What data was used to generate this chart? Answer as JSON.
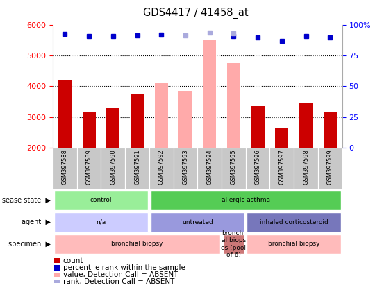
{
  "title": "GDS4417 / 41458_at",
  "samples": [
    "GSM397588",
    "GSM397589",
    "GSM397590",
    "GSM397591",
    "GSM397592",
    "GSM397593",
    "GSM397594",
    "GSM397595",
    "GSM397596",
    "GSM397597",
    "GSM397598",
    "GSM397599"
  ],
  "count_values": [
    4180,
    3160,
    3310,
    3750,
    null,
    null,
    null,
    null,
    3360,
    2660,
    3440,
    3160
  ],
  "count_absent": [
    null,
    null,
    null,
    null,
    4100,
    3840,
    5500,
    4760,
    null,
    null,
    null,
    null
  ],
  "percentile_present": [
    5700,
    5620,
    5620,
    5650,
    5680,
    null,
    null,
    5640,
    5590,
    5470,
    5620,
    5590
  ],
  "percentile_absent": [
    null,
    null,
    null,
    null,
    null,
    5660,
    5740,
    5720,
    null,
    null,
    null,
    null
  ],
  "ylim": [
    2000,
    6000
  ],
  "yticks_left": [
    2000,
    3000,
    4000,
    5000,
    6000
  ],
  "bar_color_normal": "#cc0000",
  "bar_color_absent": "#ffaaaa",
  "dot_color_normal": "#0000cc",
  "dot_color_absent": "#aaaadd",
  "disease_state_segments": [
    {
      "text": "control",
      "start": 0,
      "end": 4,
      "color": "#99ee99"
    },
    {
      "text": "allergic asthma",
      "start": 4,
      "end": 12,
      "color": "#55cc55"
    }
  ],
  "agent_segments": [
    {
      "text": "n/a",
      "start": 0,
      "end": 4,
      "color": "#ccccff"
    },
    {
      "text": "untreated",
      "start": 4,
      "end": 8,
      "color": "#9999dd"
    },
    {
      "text": "inhaled corticosteroid",
      "start": 8,
      "end": 12,
      "color": "#7777bb"
    }
  ],
  "specimen_segments": [
    {
      "text": "bronchial biopsy",
      "start": 0,
      "end": 7,
      "color": "#ffbbbb"
    },
    {
      "text": "bronchi\nal biops\nes (pool\nof 6)",
      "start": 7,
      "end": 8,
      "color": "#cc7777"
    },
    {
      "text": "bronchial biopsy",
      "start": 8,
      "end": 12,
      "color": "#ffbbbb"
    }
  ],
  "legend_items": [
    {
      "color": "#cc0000",
      "label": "count"
    },
    {
      "color": "#0000cc",
      "label": "percentile rank within the sample"
    },
    {
      "color": "#ffaaaa",
      "label": "value, Detection Call = ABSENT"
    },
    {
      "color": "#aaaadd",
      "label": "rank, Detection Call = ABSENT"
    }
  ],
  "figsize": [
    5.63,
    4.44
  ],
  "dpi": 100
}
